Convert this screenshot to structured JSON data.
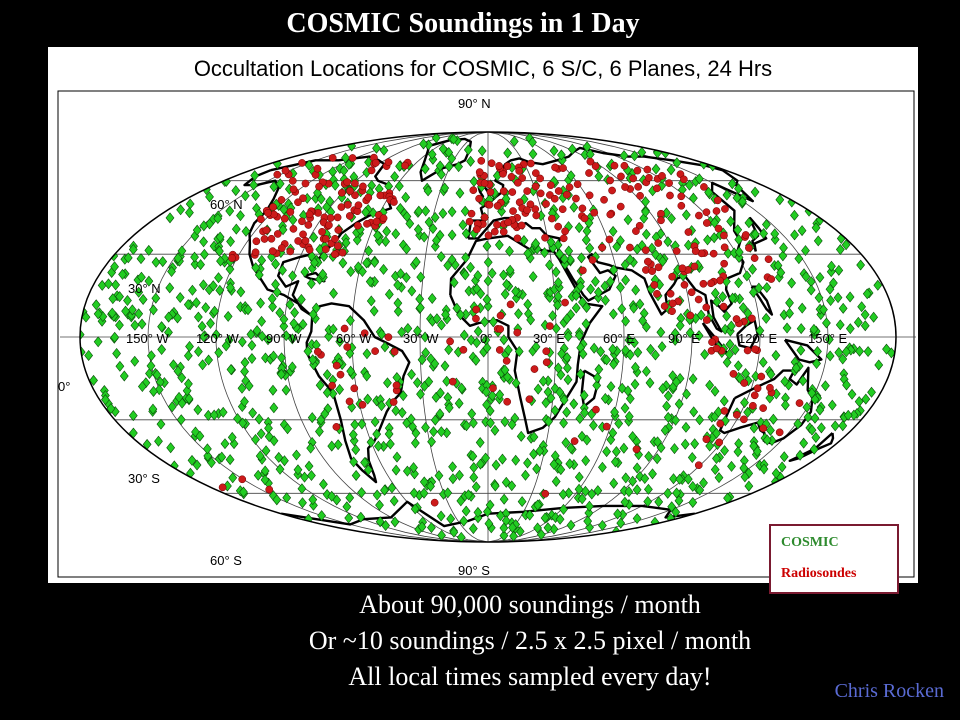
{
  "slide": {
    "title": "COSMIC Soundings in 1 Day",
    "caption_line1": "About 90,000 soundings / month",
    "caption_line2": "Or ~10 soundings / 2.5 x 2.5 pixel / month",
    "caption_line3": "All local times sampled every day!",
    "author": "Chris Rocken"
  },
  "map": {
    "title": "Occultation Locations for COSMIC, 6 S/C, 6 Planes, 24 Hrs",
    "projection": "mollweide",
    "latitude_labels": [
      "90° N",
      "60° N",
      "30° N",
      "0°",
      "30° S",
      "60° S",
      "90° S"
    ],
    "longitude_labels": [
      "150° W",
      "120° W",
      "90° W",
      "60° W",
      "30° W",
      "0°",
      "30° E",
      "60° E",
      "90° E",
      "120° E",
      "150° E"
    ],
    "legend": {
      "cosmic": "COSMIC",
      "radiosondes": "Radiosondes"
    },
    "colors": {
      "cosmic": "#22cc22",
      "radiosondes": "#cc1a1a",
      "coast": "#000000"
    },
    "cosmic_point_count": 1500,
    "radiosonde_point_count": 360
  }
}
